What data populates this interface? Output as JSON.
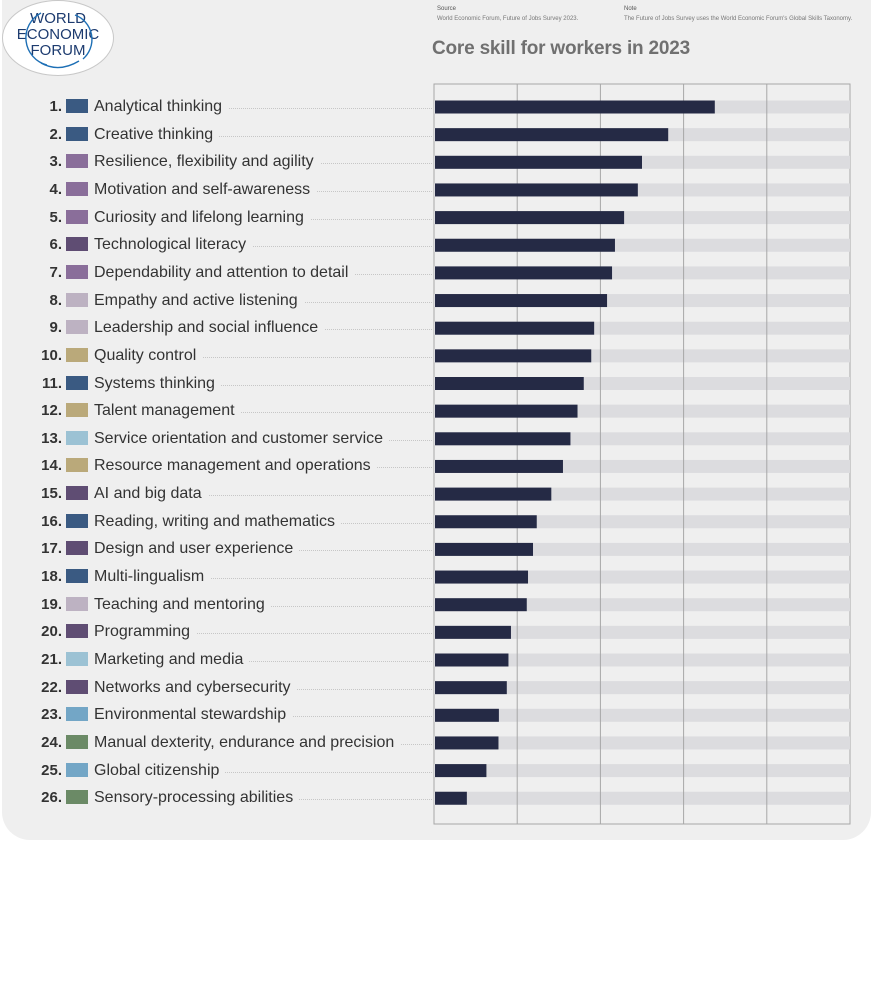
{
  "logo": {
    "line1": "WORLD",
    "line2": "ECONOMIC",
    "line3": "FORUM"
  },
  "source": {
    "heading": "Source",
    "text": "World Economic Forum, Future of Jobs Survey 2023."
  },
  "note": {
    "heading": "Note",
    "text": "The Future of Jobs Survey uses the World Economic Forum's Global Skills Taxonomy."
  },
  "colors": {
    "bar": "#252a45",
    "track": "#dcdcdf",
    "grid": "#a7a7a7",
    "cognitive": "#3a5a82",
    "self_efficacy": "#8a6e9a",
    "technology": "#5f4d73",
    "engagement": "#bdb2c2",
    "management": "#baa97a",
    "working_with_others": "#9cc2d4",
    "ethics": "#73a6c6",
    "physical": "#6b8a66"
  },
  "chart_data": {
    "type": "bar",
    "orientation": "horizontal",
    "title": "Core skill for workers in 2023",
    "xlim": [
      0,
      100
    ],
    "grid": true,
    "categories": [
      "Analytical thinking",
      "Creative thinking",
      "Resilience, flexibility and agility",
      "Motivation and self-awareness",
      "Curiosity and lifelong learning",
      "Technological literacy",
      "Dependability and attention to detail",
      "Empathy and active listening",
      "Leadership and social influence",
      "Quality control",
      "Systems thinking",
      "Talent management",
      "Service orientation and customer service",
      "Resource management and operations",
      "AI and big data",
      "Reading, writing and mathematics",
      "Design and user experience",
      "Multi-lingualism",
      "Teaching and mentoring",
      "Programming",
      "Marketing and media",
      "Networks and cybersecurity",
      "Environmental stewardship",
      "Manual dexterity, endurance and precision",
      "Global citizenship",
      "Sensory-processing abilities"
    ],
    "ranks": [
      "1.",
      "2.",
      "3.",
      "4.",
      "5.",
      "6.",
      "7.",
      "8.",
      "9.",
      "10.",
      "11.",
      "12.",
      "13.",
      "14.",
      "15.",
      "16.",
      "17.",
      "18.",
      "19.",
      "20.",
      "21.",
      "22.",
      "23.",
      "24.",
      "25.",
      "26."
    ],
    "groups": [
      "cognitive",
      "cognitive",
      "self_efficacy",
      "self_efficacy",
      "self_efficacy",
      "technology",
      "self_efficacy",
      "engagement",
      "engagement",
      "management",
      "cognitive",
      "management",
      "working_with_others",
      "management",
      "technology",
      "cognitive",
      "technology",
      "cognitive",
      "engagement",
      "technology",
      "working_with_others",
      "technology",
      "ethics",
      "physical",
      "ethics",
      "physical"
    ],
    "values": [
      67.5,
      56.3,
      50.0,
      49.0,
      45.7,
      43.5,
      42.8,
      41.6,
      38.5,
      37.8,
      36.0,
      34.5,
      32.8,
      31.0,
      28.2,
      24.7,
      23.8,
      22.6,
      22.3,
      18.5,
      17.9,
      17.5,
      15.6,
      15.5,
      12.6,
      7.9
    ]
  }
}
